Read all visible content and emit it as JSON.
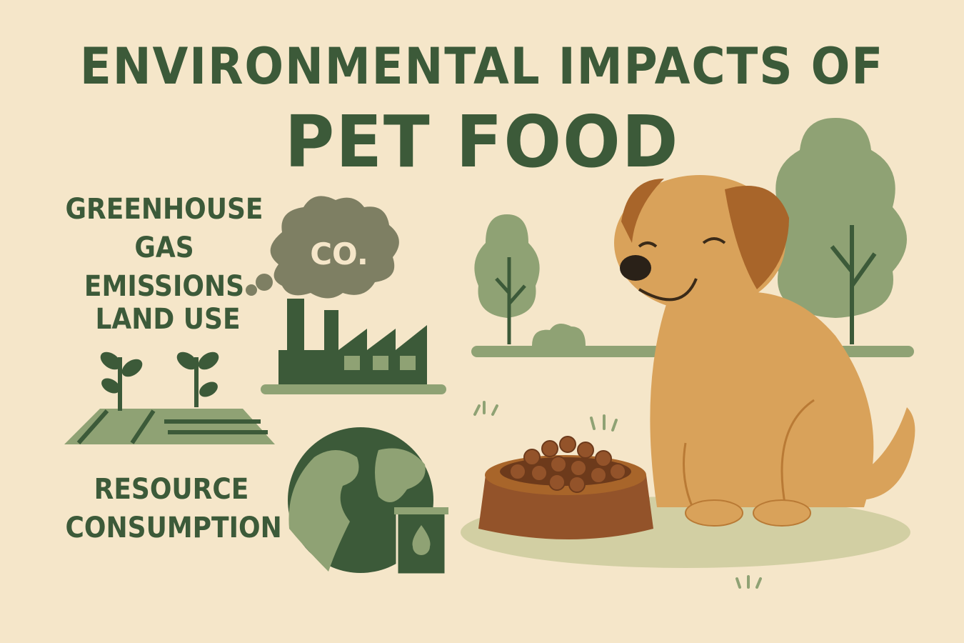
{
  "title": {
    "line1": "ENVIRONMENTAL IMPACTS OF",
    "line2": "PET FOOD"
  },
  "impacts": [
    {
      "label_line1": "GREENHOUSE",
      "label_line2": "GAS EMISSIONS",
      "icon": "factory-co2-cloud-icon"
    },
    {
      "label_line1": "LAND USE",
      "label_line2": "",
      "icon": "farmland-sprouts-icon"
    },
    {
      "label_line1": "RESOURCE",
      "label_line2": "CONSUMPTION",
      "icon": "globe-and-water-can-icon"
    }
  ],
  "cloud_text": "CO.",
  "colors": {
    "background": "#f5e6c9",
    "dark_green": "#3c5a39",
    "sage": "#8fa274",
    "smoke": "#7e7f63",
    "dog": "#d9a25a",
    "dog_ear": "#a8652a",
    "bowl": "#93532a"
  }
}
